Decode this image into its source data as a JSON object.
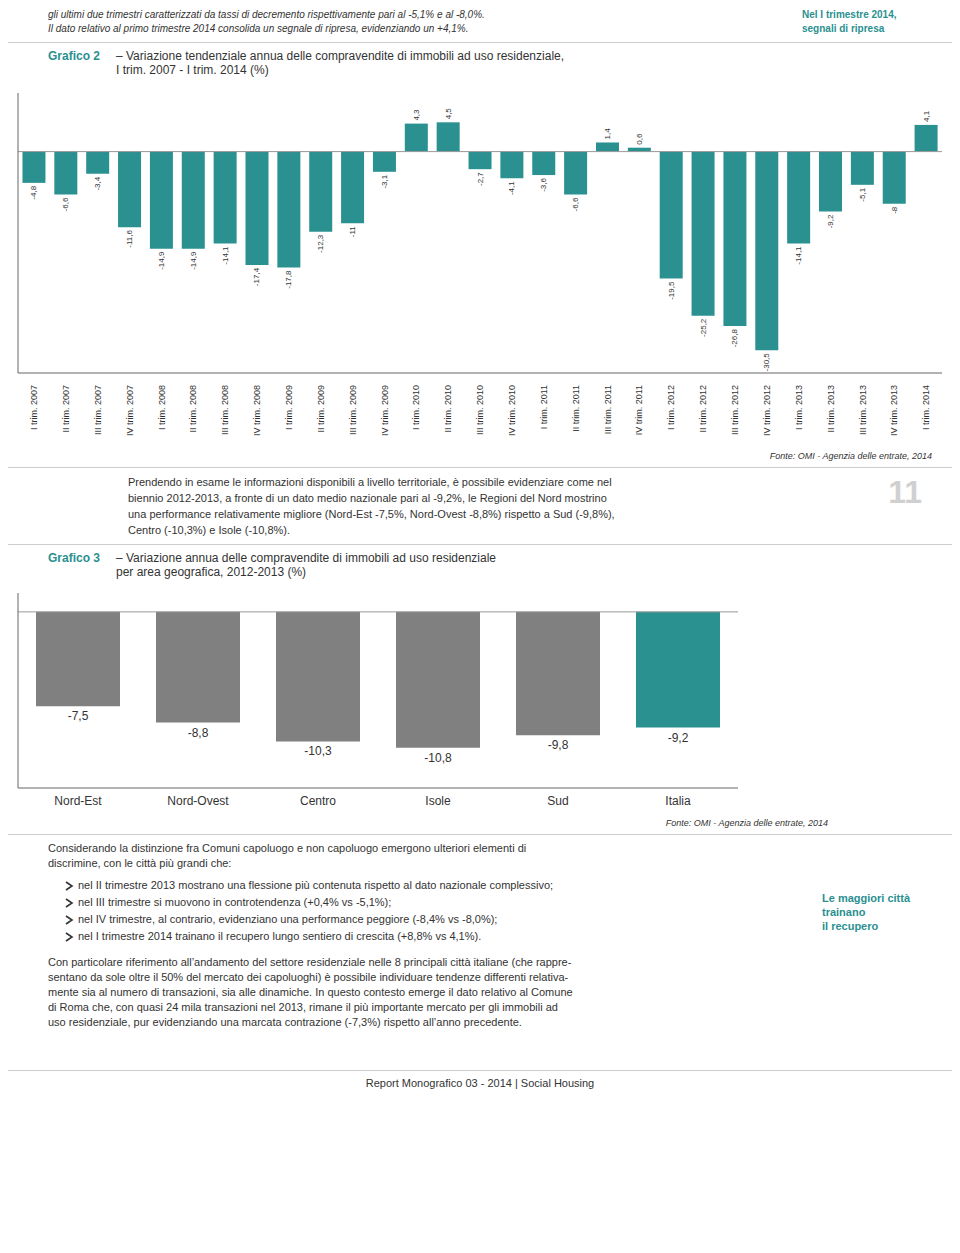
{
  "chart_data": [
    {
      "type": "bar",
      "title": "Grafico 2",
      "subtitle": [
        "– Variazione tendenziale annua delle compravendite di immobili ad uso residenziale,",
        "I trim. 2007 - I trim. 2014 (%)"
      ],
      "categories": [
        "I trim. 2007",
        "II trim. 2007",
        "III trim. 2007",
        "IV trim. 2007",
        "I trim. 2008",
        "II trim. 2008",
        "III trim. 2008",
        "IV trim. 2008",
        "I trim. 2009",
        "II trim. 2009",
        "III trim. 2009",
        "IV trim. 2009",
        "I trim. 2010",
        "II trim. 2010",
        "III trim. 2010",
        "IV trim. 2010",
        "I trim. 2011",
        "II trim. 2011",
        "III trim. 2011",
        "IV trim. 2011",
        "I trim. 2012",
        "II trim. 2012",
        "III trim. 2012",
        "IV trim. 2012",
        "I trim. 2013",
        "II trim. 2013",
        "III trim. 2013",
        "IV trim. 2013",
        "I trim. 2014"
      ],
      "values": [
        -4.8,
        -6.6,
        -3.4,
        -11.6,
        -14.9,
        -14.9,
        -14.1,
        -17.4,
        -17.8,
        -12.3,
        -11.0,
        -3.1,
        4.3,
        4.5,
        -2.7,
        -4.1,
        -3.6,
        -6.6,
        1.4,
        0.6,
        -19.5,
        -25.2,
        -26.8,
        -30.5,
        -14.1,
        -9.2,
        -5.1,
        -8.0,
        4.1
      ],
      "value_labels": [
        "-4,8",
        "-6,6",
        "-3,4",
        "-11,6",
        "-14,9",
        "-14,9",
        "-14,1",
        "-17,4",
        "-17,8",
        "-12,3",
        "-11",
        "-3,1",
        "4,3",
        "4,5",
        "-2,7",
        "-4,1",
        "-3,6",
        "-6,6",
        "1,4",
        "0,6",
        "-19,5",
        "-25,2",
        "-26,8",
        "-30,5",
        "-14,1",
        "-9,2",
        "-5,1",
        "-8",
        "4,1"
      ],
      "color": "#2a9090",
      "ylim": [
        -34,
        9
      ],
      "data_labels": true,
      "tick_labels": "x",
      "grid": false,
      "annotations": [
        [
          "gli ultimi due trimestri caratterizzati da tassi di decremento rispettivamente pari al -5,1% e al -8,0%.",
          "Il dato relativo al primo trimestre 2014 consolida un segnale di ripresa, evidenziando un +4,1%."
        ],
        [
          "Nel I trimestre 2014,",
          "segnali di ripresa"
        ],
        [
          "Fonte: OMI - Agenzia delle entrate, 2014"
        ],
        [
          "Prendendo in esame le informazioni disponibili a livello territoriale, è possibile evidenziare come nel",
          "biennio 2012-2013, a fronte di un dato medio nazionale pari al -9,2%, le Regioni del Nord mostrino",
          "una performance relativamente migliore (Nord-Est -7,5%, Nord-Ovest -8,8%) rispetto a Sud (-9,8%),",
          "Centro (-10,3%) e Isole (-10,8%)."
        ],
        [
          "11"
        ]
      ]
    },
    {
      "type": "bar",
      "title": "Grafico 3",
      "subtitle": [
        "– Variazione annua delle compravendite di immobili ad uso residenziale",
        "per area geografica, 2012-2013 (%)"
      ],
      "categories": [
        "Nord-Est",
        "Nord-Ovest",
        "Centro",
        "Isole",
        "Sud",
        "Italia"
      ],
      "values": [
        -7.5,
        -8.8,
        -10.3,
        -10.8,
        -9.8,
        -9.2
      ],
      "value_labels": [
        "-7,5",
        "-8,8",
        "-10,3",
        "-10,8",
        "-9,8",
        "-9,2"
      ],
      "colors": [
        "#808080",
        "#808080",
        "#808080",
        "#808080",
        "#808080",
        "#2a9090"
      ],
      "ylim": [
        -14,
        1.5
      ],
      "data_labels": true,
      "tick_labels": "x",
      "grid": false,
      "annotations": [
        [
          "Fonte: OMI - Agenzia delle entrate, 2014"
        ],
        [
          "Considerando la distinzione fra Comuni capoluogo e non capoluogo emergono ulteriori elementi di",
          "discrimine, con le città più grandi che:"
        ],
        [
          "nel II trimestre 2013 mostrano una flessione più contenuta rispetto al dato nazionale complessivo;",
          "nel III trimestre si muovono in controtendenza (+0,4% vs -5,1%);",
          "nel IV trimestre, al contrario, evidenziano una performance peggiore (-8,4% vs -8,0%);",
          "nel I trimestre 2014 trainano il recupero lungo sentiero di crescita (+8,8% vs 4,1%)."
        ],
        [
          "Le maggiori città",
          "trainano",
          "il recupero"
        ],
        [
          "Con particolare riferimento all’andamento del settore residenziale nelle 8 principali città italiane (che rappre-",
          "sentano da sole oltre il 50% del mercato dei capoluoghi) è possibile individuare tendenze differenti relativa-",
          "mente sia al numero di transazioni, sia alle dinamiche. In questo contesto emerge il dato relativo al Comune",
          "di Roma che, con quasi 24 mila transazioni nel 2013, rimane il più importante mercato per gli immobili ad",
          "uso residenziale, pur evidenziando una marcata contrazione (-7,3%) rispetto all’anno precedente."
        ],
        [
          "Report Monografico 03 - 2014 | Social Housing"
        ]
      ]
    }
  ]
}
